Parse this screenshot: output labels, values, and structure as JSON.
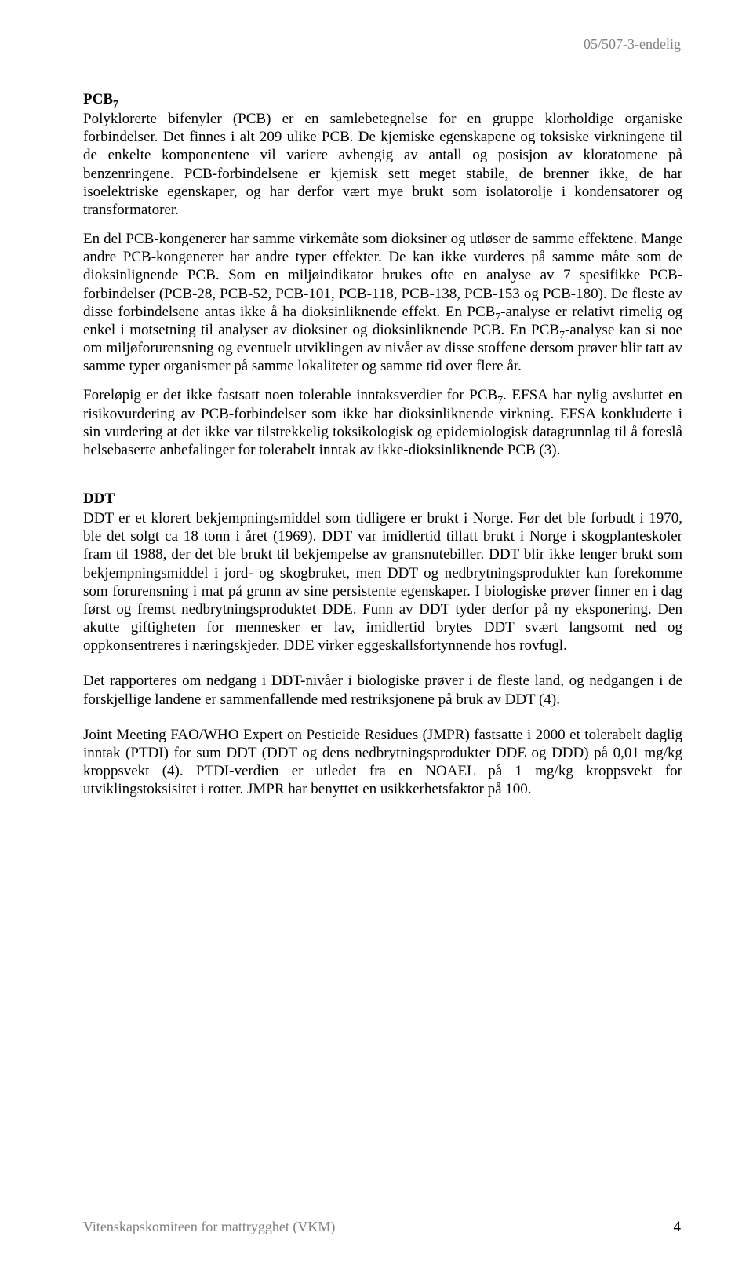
{
  "doc_id": "05/507-3-endelig",
  "pcb": {
    "heading_html": "PCB<span class=\"sub7\">7</span>",
    "p1": "Polyklorerte bifenyler (PCB) er en samlebetegnelse for en gruppe klorholdige organiske forbindelser. Det finnes i alt 209 ulike PCB. De kjemiske egenskapene og toksiske virkningene til de enkelte komponentene vil variere avhengig av antall og posisjon av kloratomene på benzenringene. PCB-forbindelsene er kjemisk sett meget stabile, de brenner ikke, de har isoelektriske egenskaper, og har derfor vært mye brukt som isolatorolje i kondensatorer og transformatorer.",
    "p2_html": "En del PCB-kongenerer har samme virkemåte som dioksiner og utløser de samme effektene. Mange andre PCB-kongenerer har andre typer effekter. De kan ikke vurderes på samme måte som de dioksinlignende PCB. Som en miljøindikator brukes ofte en analyse av 7 spesifikke PCB-forbindelser (PCB-28, PCB-52, PCB-101, PCB-118, PCB-138, PCB-153 og PCB-180). De fleste av disse forbindelsene antas ikke å ha dioksinliknende effekt. En PCB<span class=\"sub7\">7</span>-analyse er relativt rimelig og enkel i motsetning til analyser av dioksiner og dioksinliknende PCB. En PCB<span class=\"sub7\">7</span>-analyse kan si noe om miljøforurensning og eventuelt utviklingen av nivåer av disse stoffene dersom prøver blir tatt av samme typer organismer på samme lokaliteter og samme tid over flere år.",
    "p3_html": "Foreløpig er det ikke fastsatt noen tolerable inntaksverdier for PCB<span class=\"sub7\">7</span>. EFSA har nylig avsluttet en risikovurdering av PCB-forbindelser som ikke har dioksinliknende virkning. EFSA konkluderte i sin vurdering at det ikke var tilstrekkelig toksikologisk og epidemiologisk datagrunnlag til å foreslå helsebaserte anbefalinger for tolerabelt inntak av ikke-dioksinliknende PCB (3)."
  },
  "ddt": {
    "heading": "DDT",
    "p1": "DDT er et klorert bekjempningsmiddel som tidligere er brukt i Norge. Før det ble forbudt i 1970, ble det solgt ca 18 tonn i året (1969). DDT var imidlertid tillatt brukt i Norge i skogplanteskoler fram til 1988, der det ble brukt til bekjempelse av gransnutebiller. DDT blir ikke lenger brukt som bekjempningsmiddel i jord- og skogbruket, men DDT og nedbrytningsprodukter kan forekomme som forurensning i mat på grunn av sine persistente egenskaper. I biologiske prøver finner en i dag først og fremst nedbrytningsproduktet DDE. Funn av DDT tyder derfor på ny eksponering. Den akutte giftigheten for mennesker er lav, imidlertid brytes DDT svært langsomt ned og oppkonsentreres i næringskjeder. DDE virker eggeskallsfortynnende hos rovfugl.",
    "p2": "Det rapporteres om nedgang i DDT-nivåer i biologiske prøver i de fleste land, og nedgangen i de forskjellige landene er sammenfallende med restriksjonene på bruk av DDT (4).",
    "p3": "Joint Meeting FAO/WHO Expert on Pesticide Residues (JMPR) fastsatte i 2000 et tolerabelt daglig inntak (PTDI) for sum DDT (DDT og dens nedbrytningsprodukter DDE og DDD) på 0,01 mg/kg kroppsvekt (4). PTDI-verdien er utledet fra en NOAEL på 1 mg/kg kroppsvekt for utviklingstoksisitet i rotter. JMPR har benyttet en usikkerhetsfaktor på 100."
  },
  "footer": {
    "org": "Vitenskapskomiteen for mattrygghet (VKM)",
    "page": "4"
  },
  "colors": {
    "text": "#000000",
    "muted": "#808080",
    "background": "#ffffff"
  }
}
